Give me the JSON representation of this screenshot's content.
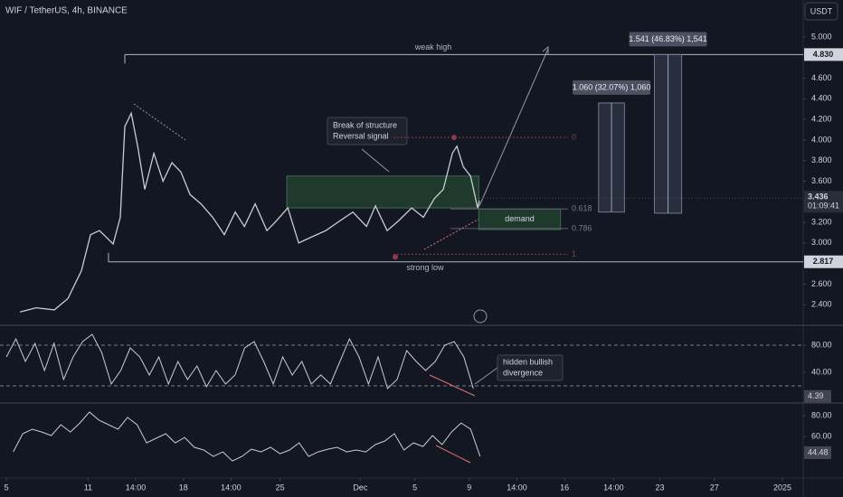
{
  "header": {
    "symbol": "WIF / TetherUS, 4h, BINANCE",
    "currency": "USDT"
  },
  "chart_data": [
    {
      "type": "line",
      "color": "#c8ccd6",
      "xlim": [
        3.53,
        62.53
      ],
      "ylim": [
        2.2,
        5.36
      ],
      "x": [
        5.0,
        6.19,
        7.52,
        8.52,
        9.51,
        10.18,
        10.84,
        11.84,
        12.37,
        12.7,
        13.17,
        13.63,
        14.17,
        14.83,
        15.5,
        16.16,
        16.82,
        17.49,
        18.29,
        19.15,
        20.01,
        20.81,
        21.48,
        22.27,
        23.14,
        23.8,
        24.67,
        25.47,
        26.46,
        27.46,
        28.45,
        29.45,
        30.45,
        31.11,
        31.97,
        32.77,
        33.77,
        34.63,
        35.43,
        36.09,
        36.76,
        37.09,
        37.56,
        38.09,
        38.62,
        38.75
      ],
      "values": [
        2.33,
        2.37,
        2.35,
        2.46,
        2.73,
        3.08,
        3.12,
        2.99,
        3.25,
        4.13,
        4.26,
        3.95,
        3.52,
        3.87,
        3.6,
        3.78,
        3.69,
        3.47,
        3.38,
        3.25,
        3.08,
        3.3,
        3.16,
        3.38,
        3.12,
        3.21,
        3.34,
        3.0,
        3.06,
        3.12,
        3.21,
        3.3,
        3.16,
        3.36,
        3.12,
        3.21,
        3.34,
        3.25,
        3.43,
        3.52,
        3.87,
        3.94,
        3.74,
        3.65,
        3.34,
        3.41
      ],
      "yticks": [
        {
          "value": 5,
          "label": "5.000"
        },
        {
          "value": 4.6,
          "label": "4.600"
        },
        {
          "value": 4.4,
          "label": "4.400"
        },
        {
          "value": 4.2,
          "label": "4.200"
        },
        {
          "value": 4,
          "label": "4.000"
        },
        {
          "value": 3.8,
          "label": "3.800"
        },
        {
          "value": 3.6,
          "label": "3.600"
        },
        {
          "value": 3.2,
          "label": "3.200"
        },
        {
          "value": 3,
          "label": "3.000"
        },
        {
          "value": 2.6,
          "label": "2.600"
        },
        {
          "value": 2.4,
          "label": "2.400"
        }
      ],
      "grid": false,
      "levels": [
        {
          "value": 4.83,
          "x_start": 12.7,
          "label": "weak high",
          "tag": "4.830"
        },
        {
          "value": 2.817,
          "x_start": 11.5,
          "label": "strong low",
          "tag": "2.817"
        }
      ],
      "fib": [
        {
          "value": 4.025,
          "label": "0"
        },
        {
          "value": 3.33,
          "label": "0.618"
        },
        {
          "value": 3.14,
          "label": "0.786"
        },
        {
          "value": 2.89,
          "label": "1"
        }
      ],
      "zones": [
        {
          "x": [
            24.6,
            38.7
          ],
          "low": 3.34,
          "high": 3.65,
          "color": "#1f3a2c"
        },
        {
          "x": [
            38.7,
            44.7
          ],
          "low": 3.13,
          "high": 3.33,
          "color": "#1f3a2c",
          "label": "demand"
        }
      ],
      "measures": [
        {
          "x": [
            47.5,
            49.4
          ],
          "low": 3.3,
          "high": 4.36,
          "label": "1.060 (32.07%) 1,060"
        },
        {
          "x": [
            51.6,
            53.6
          ],
          "low": 3.289,
          "high": 4.83,
          "label": "1.541 (46.83%) 1,541"
        }
      ],
      "last_price": {
        "value": 3.436,
        "label": "3.436",
        "countdown": "01:09:41"
      },
      "annotations": [
        "Break of structure",
        "Reversal signal"
      ]
    },
    {
      "type": "line",
      "color": "#c8ccd6",
      "xlim": [
        3.53,
        62.53
      ],
      "ylim": [
        -4,
        106.7
      ],
      "x": [
        4.0,
        4.7,
        5.4,
        6.1,
        6.8,
        7.5,
        8.2,
        8.9,
        9.6,
        10.3,
        11.0,
        11.7,
        12.4,
        13.1,
        13.8,
        14.5,
        15.2,
        15.9,
        16.6,
        17.3,
        18.0,
        18.7,
        19.4,
        20.1,
        20.8,
        21.5,
        22.2,
        22.9,
        23.6,
        24.3,
        25.0,
        25.7,
        26.4,
        27.1,
        27.8,
        28.5,
        29.2,
        29.9,
        30.6,
        31.3,
        32.0,
        32.7,
        33.4,
        34.1,
        34.8,
        35.5,
        36.2,
        36.9,
        37.6,
        38.3
      ],
      "values": [
        62.7,
        89.3,
        56,
        82.7,
        42.7,
        82.7,
        29.3,
        62.7,
        85.3,
        96,
        69.3,
        22.7,
        42.7,
        76,
        62.7,
        36,
        62.7,
        22.7,
        56,
        29.3,
        49.3,
        18.7,
        42.7,
        22.7,
        36,
        76,
        85.3,
        56,
        22.7,
        62.7,
        36,
        56,
        22.7,
        36,
        22.7,
        56,
        89.3,
        62.7,
        22.7,
        62.7,
        16,
        29.3,
        72,
        56,
        42.7,
        56,
        80,
        85.3,
        62.7,
        16
      ],
      "yticks": [
        {
          "value": 80,
          "label": "80.00"
        },
        {
          "value": 40,
          "label": "40.00"
        }
      ],
      "levels": [
        80,
        20
      ],
      "last_value": {
        "value": 4.39,
        "label": "4.39"
      },
      "annotations": [
        "hidden bullish",
        "divergence"
      ]
    },
    {
      "type": "line",
      "color": "#c8ccd6",
      "xlim": [
        3.53,
        62.53
      ],
      "ylim": [
        21,
        90.4
      ],
      "x": [
        4.5,
        5.2,
        5.9,
        6.6,
        7.3,
        8.0,
        8.7,
        9.4,
        10.1,
        10.8,
        11.5,
        12.2,
        12.9,
        13.6,
        14.3,
        15.0,
        15.7,
        16.4,
        17.1,
        17.8,
        18.5,
        19.2,
        19.9,
        20.6,
        21.3,
        22.0,
        22.7,
        23.4,
        24.1,
        24.8,
        25.5,
        26.2,
        26.9,
        27.6,
        28.3,
        29.0,
        29.7,
        30.4,
        31.1,
        31.8,
        32.5,
        33.2,
        33.9,
        34.6,
        35.3,
        36.0,
        36.7,
        37.4,
        38.1,
        38.8
      ],
      "values": [
        45.2,
        62.6,
        67,
        64.3,
        60.9,
        71.3,
        64.3,
        73,
        83.5,
        75.7,
        71.3,
        67,
        78.3,
        71.3,
        53.9,
        58.3,
        62.6,
        53.9,
        59.1,
        49.6,
        47,
        40.9,
        45.2,
        36.5,
        40.9,
        47.8,
        45.2,
        49.6,
        43.5,
        47,
        53.9,
        40.9,
        45.2,
        47.8,
        49.6,
        45.2,
        47,
        45.2,
        52.2,
        55.7,
        62.6,
        47,
        53.9,
        50.4,
        60.9,
        52.2,
        64.3,
        73,
        67,
        40.9
      ],
      "yticks": [
        {
          "value": 80,
          "label": "80.00"
        },
        {
          "value": 60,
          "label": "60.00"
        }
      ],
      "last_value": {
        "value": 44.48,
        "label": "44.48"
      },
      "xticks": [
        {
          "value": 4,
          "label": "5"
        },
        {
          "value": 10,
          "label": "11"
        },
        {
          "value": 13.5,
          "label": "14:00"
        },
        {
          "value": 17,
          "label": "18"
        },
        {
          "value": 20.5,
          "label": "14:00"
        },
        {
          "value": 24.1,
          "label": "25"
        },
        {
          "value": 30,
          "label": "Dec"
        },
        {
          "value": 34,
          "label": "5"
        },
        {
          "value": 38,
          "label": "9"
        },
        {
          "value": 41.5,
          "label": "14:00"
        },
        {
          "value": 45,
          "label": "16"
        },
        {
          "value": 48.6,
          "label": "14:00"
        },
        {
          "value": 52,
          "label": "23"
        },
        {
          "value": 56,
          "label": "27"
        },
        {
          "value": 61,
          "label": "2025"
        }
      ]
    }
  ]
}
